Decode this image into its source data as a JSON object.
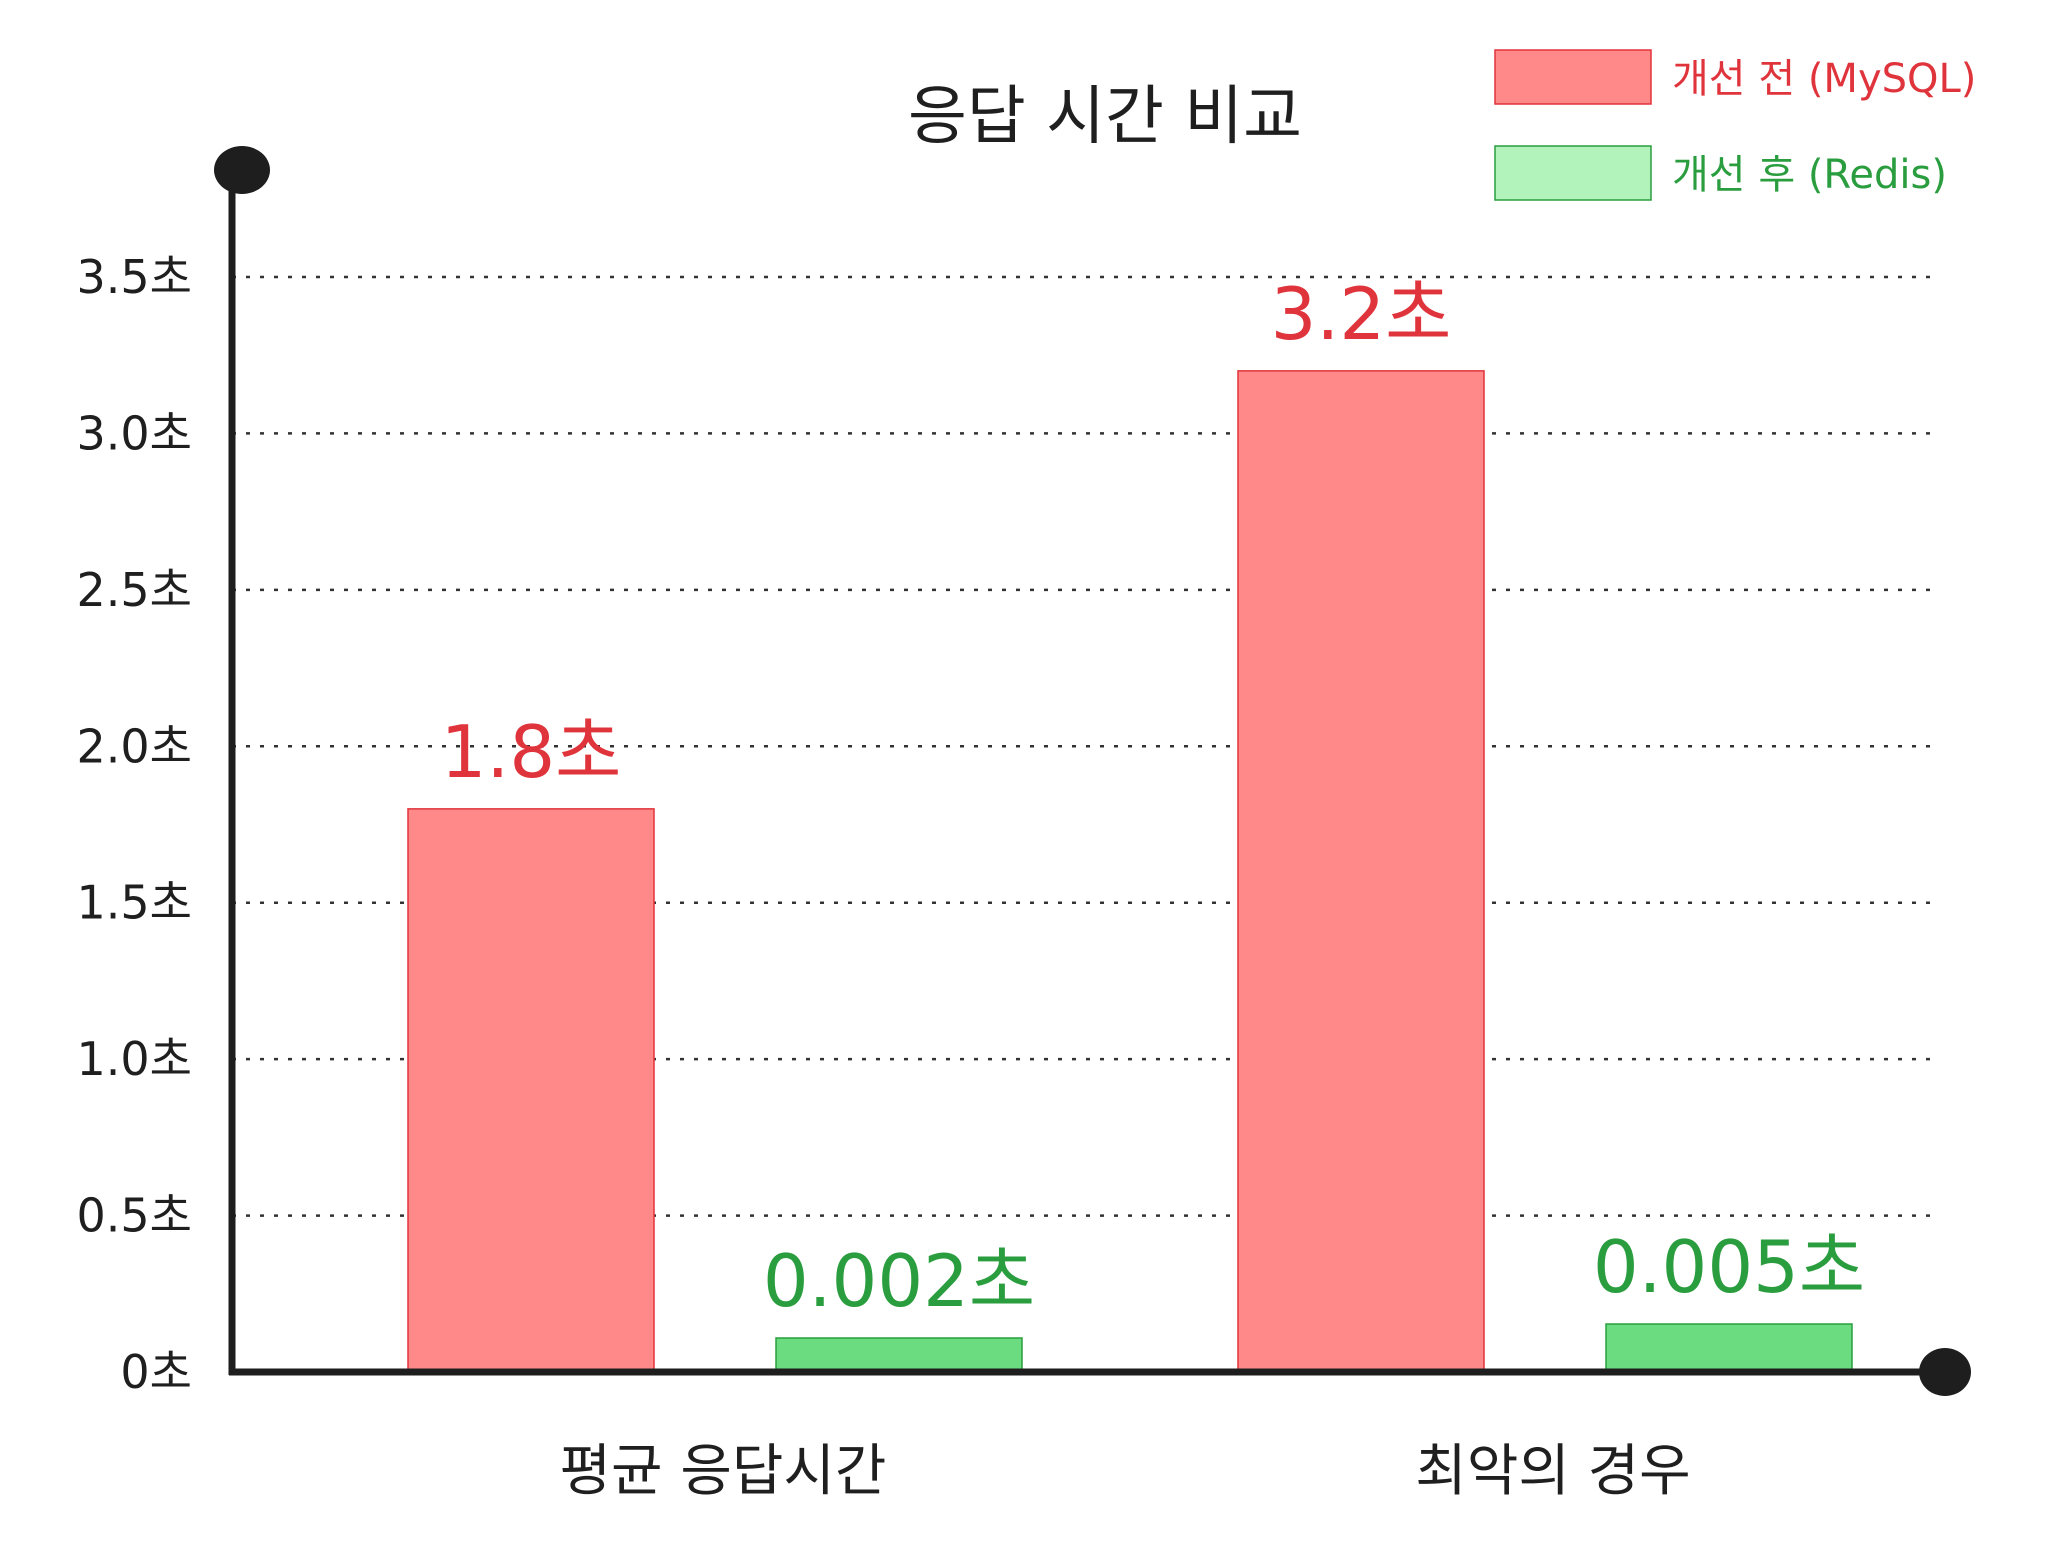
{
  "chart_data": {
    "type": "bar",
    "title": "응답 시간 비교",
    "categories": [
      "평균 응답시간",
      "최악의 경우"
    ],
    "series": [
      {
        "name": "개선 전 (MySQL)",
        "values": [
          1.8,
          3.2
        ],
        "value_labels": [
          "1.8초",
          "3.2초"
        ],
        "color": "#ff8888",
        "stroke": "#e0343c",
        "label_color": "#e0343c"
      },
      {
        "name": "개선 후 (Redis)",
        "values": [
          0.002,
          0.005
        ],
        "value_labels": [
          "0.002초",
          "0.005초"
        ],
        "color": "#6bdc80",
        "stroke": "#2a9d3f",
        "label_color": "#2a9d3f"
      }
    ],
    "y_ticks": [
      {
        "value": 0,
        "label": "0초"
      },
      {
        "value": 0.5,
        "label": "0.5초"
      },
      {
        "value": 1.0,
        "label": "1.0초"
      },
      {
        "value": 1.5,
        "label": "1.5초"
      },
      {
        "value": 2.0,
        "label": "2.0초"
      },
      {
        "value": 2.5,
        "label": "2.5초"
      },
      {
        "value": 3.0,
        "label": "3.0초"
      },
      {
        "value": 3.5,
        "label": "3.5초"
      }
    ],
    "ylim": [
      0,
      3.5
    ],
    "grid": true,
    "grid_style": "dotted",
    "legend_position": "top-right",
    "xlabel": "",
    "ylabel": ""
  }
}
